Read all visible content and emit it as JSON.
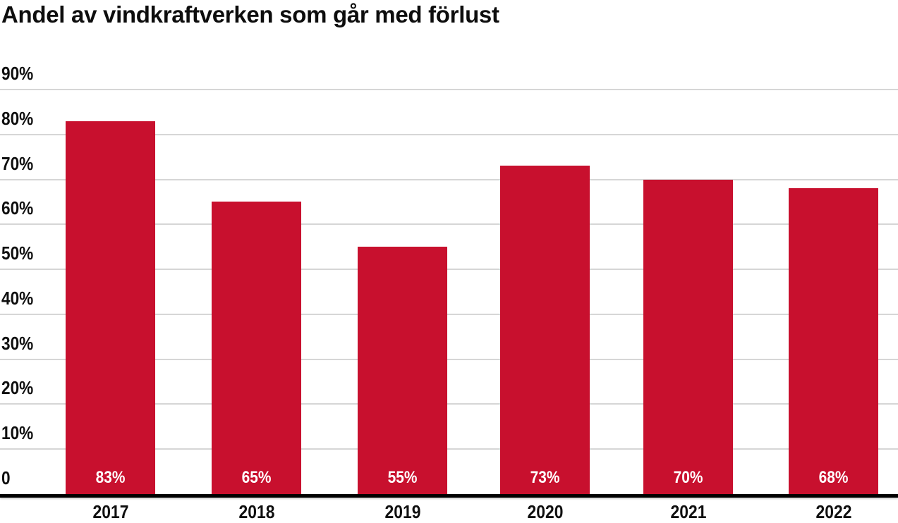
{
  "chart_data": {
    "type": "bar",
    "title": "Andel av vindkraftverken som går med förlust",
    "categories": [
      "2017",
      "2018",
      "2019",
      "2020",
      "2021",
      "2022"
    ],
    "values": [
      83,
      65,
      55,
      73,
      70,
      68
    ],
    "value_labels": [
      "83%",
      "65%",
      "55%",
      "73%",
      "70%",
      "68%"
    ],
    "yticks": [
      {
        "value": 90,
        "label": "90%"
      },
      {
        "value": 80,
        "label": "80%"
      },
      {
        "value": 70,
        "label": "70%"
      },
      {
        "value": 60,
        "label": "60%"
      },
      {
        "value": 50,
        "label": "50%"
      },
      {
        "value": 40,
        "label": "40%"
      },
      {
        "value": 30,
        "label": "30%"
      },
      {
        "value": 20,
        "label": "20%"
      },
      {
        "value": 10,
        "label": "10%"
      },
      {
        "value": 0,
        "label": "0"
      }
    ],
    "ylim": [
      0,
      90
    ],
    "grid": "horizontal",
    "legend": "none",
    "xlabel": "",
    "ylabel": "",
    "colors": {
      "bar": "#C8102E",
      "bar_label": "#FFFFFF",
      "gridline": "#D6D6D6",
      "axis_line": "#000000",
      "tick_text": "#0f0f0f",
      "title_text": "#0d0d0d"
    }
  }
}
